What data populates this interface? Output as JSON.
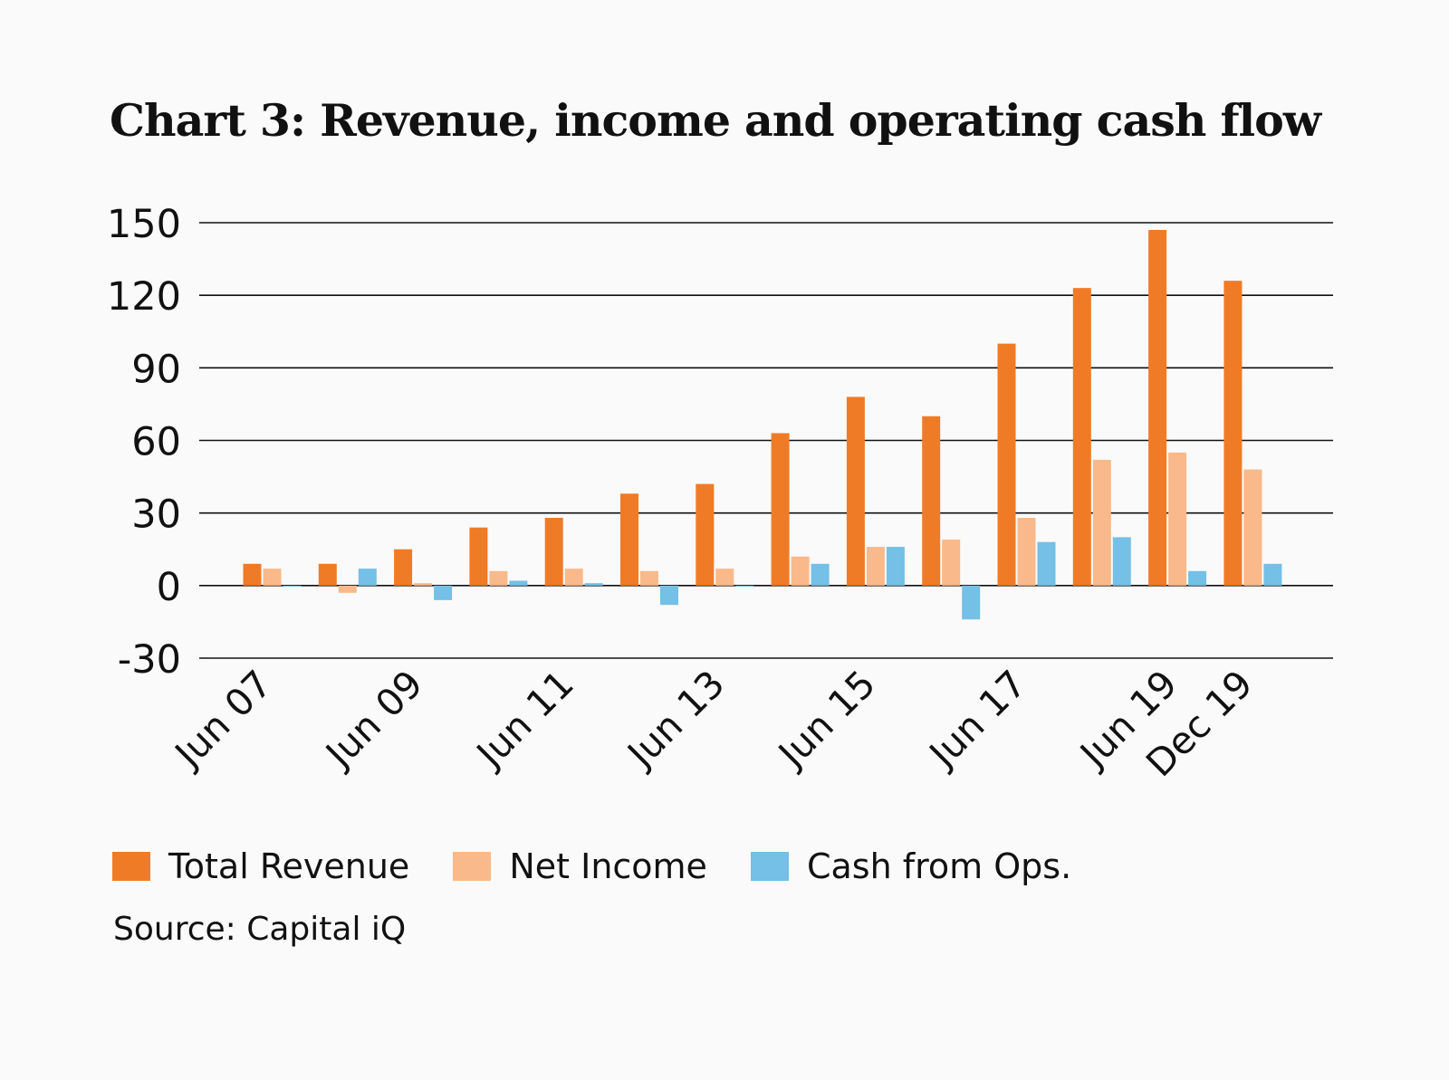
{
  "colors": {
    "total_revenue": "#f07b27",
    "net_income": "#f9b98a",
    "cash_from_ops": "#74c0e6",
    "gridline": "#111111"
  },
  "legend_title": "",
  "source": "Source: Capital iQ",
  "chart_data": {
    "type": "bar",
    "title": "Chart 3: Revenue, income and operating cash flow",
    "xlabel": "",
    "ylabel": "",
    "ylim": [
      -30,
      150
    ],
    "yticks": [
      150,
      120,
      90,
      60,
      30,
      0,
      -30
    ],
    "grid": true,
    "legend_position": "bottom",
    "categories": [
      "Jun 07",
      "",
      "Jun 09",
      "",
      "Jun 11",
      "",
      "Jun 13",
      "",
      "Jun 15",
      "",
      "Jun 17",
      "",
      "Jun 19",
      "Dec 19"
    ],
    "series": [
      {
        "name": "Total Revenue",
        "values": [
          9,
          9,
          15,
          24,
          28,
          38,
          42,
          63,
          78,
          70,
          100,
          123,
          147,
          126
        ]
      },
      {
        "name": "Net Income",
        "values": [
          7,
          -3,
          1,
          6,
          7,
          6,
          7,
          12,
          16,
          19,
          28,
          52,
          55,
          48
        ]
      },
      {
        "name": "Cash from Ops.",
        "values": [
          0,
          7,
          -6,
          2,
          1,
          -8,
          0,
          9,
          16,
          -14,
          18,
          20,
          6,
          9
        ]
      }
    ]
  }
}
